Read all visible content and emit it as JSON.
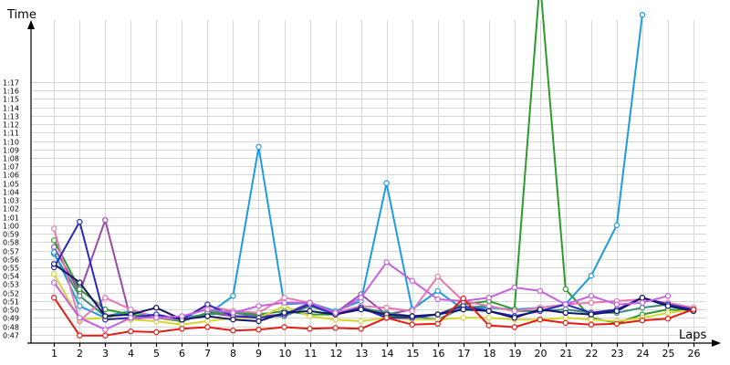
{
  "chart_data": {
    "type": "line",
    "title": "",
    "xlabel": "Laps",
    "ylabel": "Time",
    "grid": true,
    "legend": "none",
    "x": [
      1,
      2,
      3,
      4,
      5,
      6,
      7,
      8,
      9,
      10,
      11,
      12,
      13,
      14,
      15,
      16,
      17,
      18,
      19,
      20,
      21,
      22,
      23,
      24,
      25,
      26
    ],
    "xlim": [
      0.1,
      26.5
    ],
    "ylim": [
      46.0,
      83.5
    ],
    "yticks": [
      47,
      48,
      49,
      50,
      51,
      52,
      53,
      54,
      55,
      56,
      57,
      58,
      59,
      60,
      61,
      62,
      63,
      64,
      65,
      66,
      67,
      68,
      69,
      70,
      71,
      72,
      73,
      74,
      75,
      76,
      77
    ],
    "ytick_labels": [
      "0:47",
      "0:48",
      "0:49",
      "0:50",
      "0:51",
      "0:52",
      "0:53",
      "0:54",
      "0:55",
      "0:56",
      "0:57",
      "0:58",
      "0:59",
      "1:00",
      "1:01",
      "1:02",
      "1:03",
      "1:04",
      "1:05",
      "1:06",
      "1:07",
      "1:08",
      "1:09",
      "1:10",
      "1:11",
      "1:12",
      "1:13",
      "1:14",
      "1:15",
      "1:16",
      "1:17"
    ],
    "xtick_labels": [
      "1",
      "2",
      "3",
      "4",
      "5",
      "6",
      "7",
      "8",
      "9",
      "10",
      "11",
      "12",
      "13",
      "14",
      "15",
      "16",
      "17",
      "18",
      "19",
      "20",
      "21",
      "22",
      "23",
      "24",
      "25",
      "26"
    ],
    "series": [
      {
        "color": "#9a4aa8",
        "values": [
          57.4,
          52.0,
          60.6,
          48.8,
          49.2,
          48.6,
          49.6,
          49.2,
          49.2,
          49.4,
          50.8,
          49.6,
          51.8,
          49.4,
          50.0,
          null,
          null,
          null,
          null,
          null,
          null,
          null,
          null,
          null,
          null,
          null
        ]
      },
      {
        "color": "#3a8a78",
        "values": [
          56.6,
          51.6,
          49.2,
          49.8,
          49.0,
          49.0,
          49.4,
          49.6,
          49.2,
          49.2,
          50.4,
          49.4,
          50.2,
          49.6,
          49.2,
          48.8,
          50.2,
          50.4,
          49.8,
          49.8,
          50.0,
          49.6,
          49.6,
          50.2,
          50.6,
          49.8
        ]
      },
      {
        "color": "#1e9be0",
        "values": [
          56.8,
          50.4,
          49.0,
          49.8,
          49.2,
          49.0,
          49.4,
          51.6,
          69.3,
          50.6,
          50.8,
          49.8,
          51.0,
          65.0,
          50.0,
          52.2,
          50.0,
          50.2,
          50.0,
          50.2,
          50.6,
          54.0,
          60.0,
          85.0,
          null,
          null
        ]
      },
      {
        "color": "#2e9a2e",
        "values": [
          58.2,
          52.4,
          50.0,
          49.4,
          49.0,
          48.6,
          49.6,
          49.8,
          49.4,
          49.8,
          49.4,
          49.4,
          50.2,
          49.2,
          49.2,
          49.4,
          50.6,
          51.0,
          50.0,
          89.0,
          52.4,
          49.0,
          48.4,
          49.4,
          50.0,
          49.8
        ]
      },
      {
        "color": "#e878b0",
        "values": [
          59.6,
          48.6,
          51.4,
          50.0,
          49.0,
          48.8,
          50.4,
          49.8,
          49.6,
          51.4,
          50.8,
          49.6,
          50.4,
          50.2,
          49.8,
          53.9,
          51.0,
          50.4,
          49.8,
          50.2,
          50.6,
          50.8,
          51.0,
          51.2,
          50.8,
          50.2
        ]
      },
      {
        "color": "#d6d630",
        "values": [
          54.2,
          48.8,
          49.0,
          48.8,
          48.6,
          48.2,
          48.6,
          49.0,
          49.0,
          50.4,
          49.2,
          48.8,
          48.6,
          49.0,
          48.8,
          48.8,
          49.0,
          49.0,
          48.8,
          48.8,
          49.0,
          48.8,
          48.6,
          49.0,
          49.6,
          50.0
        ]
      },
      {
        "color": "#2a28b8",
        "values": [
          55.0,
          60.4,
          48.8,
          49.0,
          49.4,
          48.8,
          50.6,
          49.2,
          49.0,
          49.4,
          50.6,
          49.4,
          50.2,
          49.0,
          49.0,
          49.4,
          50.4,
          49.8,
          49.2,
          49.8,
          50.6,
          49.6,
          50.0,
          51.4,
          50.6,
          50.0
        ]
      },
      {
        "color": "#15156a",
        "values": [
          55.4,
          53.2,
          49.2,
          49.4,
          50.2,
          48.8,
          49.2,
          48.8,
          48.6,
          49.6,
          49.8,
          49.4,
          50.0,
          49.4,
          49.2,
          49.4,
          50.0,
          49.8,
          49.0,
          50.0,
          49.6,
          49.4,
          49.8,
          51.4,
          50.4,
          49.8
        ]
      },
      {
        "color": "#c660e0",
        "values": [
          53.2,
          49.0,
          47.6,
          49.0,
          49.0,
          49.2,
          50.0,
          49.6,
          50.4,
          50.8,
          50.8,
          49.6,
          51.4,
          55.6,
          53.4,
          51.2,
          51.0,
          51.4,
          52.6,
          52.2,
          50.6,
          51.6,
          50.6,
          50.8,
          51.6,
          null
        ]
      },
      {
        "color": "#e81a14",
        "values": [
          51.4,
          46.9,
          46.9,
          47.4,
          47.3,
          47.7,
          47.9,
          47.5,
          47.6,
          47.9,
          47.7,
          47.8,
          47.7,
          49.0,
          48.2,
          48.3,
          51.3,
          48.1,
          47.9,
          48.8,
          48.4,
          48.2,
          48.3,
          48.7,
          48.9,
          50.0
        ]
      }
    ]
  },
  "axes": {
    "y_arrow": "arrow-up",
    "x_arrow": "arrow-right"
  }
}
